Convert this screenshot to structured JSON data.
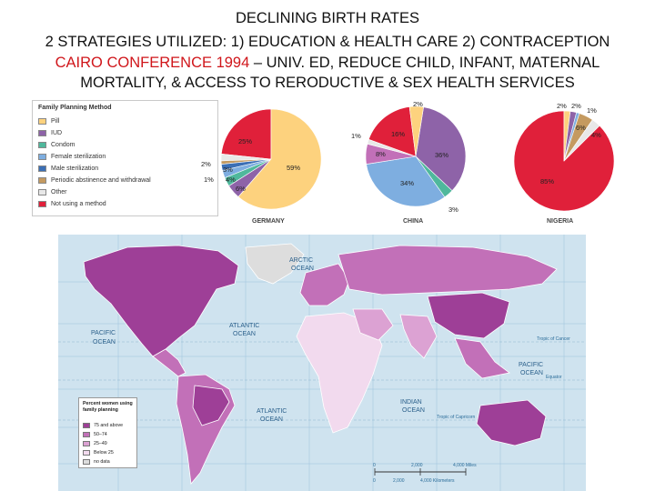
{
  "title": {
    "line1": "DECLINING BIRTH RATES",
    "line2": "2 STRATEGIES UTILIZED: 1) EDUCATION & HEALTH CARE 2) CONTRACEPTION",
    "line3_red": "CAIRO CONFERENCE 1994",
    "line3_rest": " – UNIV. ED, REDUCE CHILD, INFANT, MATERNAL",
    "line4": "MORTALITY, & ACCESS TO RERODUCTIVE & SEX HEALTH SERVICES"
  },
  "legend": {
    "title": "Family Planning Method",
    "items": [
      {
        "label": "Pill",
        "color": "#fdd27e"
      },
      {
        "label": "IUD",
        "color": "#8e63a8"
      },
      {
        "label": "Condom",
        "color": "#4fb89c"
      },
      {
        "label": "Female sterilization",
        "color": "#7eaee0"
      },
      {
        "label": "Male sterilization",
        "color": "#3b6fb5"
      },
      {
        "label": "Periodic abstinence and withdrawal",
        "color": "#c49a60"
      },
      {
        "label": "Other",
        "color": "#e8e8e8"
      },
      {
        "label": "Not using a method",
        "color": "#e0203a"
      }
    ]
  },
  "pies": [
    {
      "country": "GERMANY",
      "labels": [
        "25%",
        "59%",
        "3%",
        "4%",
        "6%",
        "2%",
        "1%"
      ]
    },
    {
      "country": "CHINA",
      "labels": [
        "16%",
        "2%",
        "36%",
        "34%",
        "3%",
        "8%",
        "1%"
      ]
    },
    {
      "country": "NIGERIA",
      "labels": [
        "85%",
        "2%",
        "2%",
        "1%",
        "6%",
        "4%"
      ]
    }
  ],
  "map": {
    "oceans": {
      "arctic": [
        "ARCTIC",
        "OCEAN"
      ],
      "atlantic_n": [
        "ATLANTIC",
        "OCEAN"
      ],
      "pacific_w": [
        "PACIFIC",
        "OCEAN"
      ],
      "atlantic_s": [
        "ATLANTIC",
        "OCEAN"
      ],
      "indian": [
        "INDIAN",
        "OCEAN"
      ],
      "pacific_e": [
        "PACIFIC",
        "OCEAN"
      ]
    },
    "legend": {
      "title": "Percent women using family planning",
      "items": [
        {
          "label": "75 and above",
          "color": "#9e3f97"
        },
        {
          "label": "50–74",
          "color": "#c270b8"
        },
        {
          "label": "25–49",
          "color": "#dca2d3"
        },
        {
          "label": "Below 25",
          "color": "#f2daee"
        },
        {
          "label": "no data",
          "color": "#dddddd"
        }
      ]
    },
    "scale": {
      "miles": [
        "0",
        "2,000",
        "4,000 Miles"
      ],
      "km": [
        "0",
        "2,000",
        "4,000 Kilometers"
      ]
    },
    "lines": {
      "cancer": "Tropic of Cancer",
      "equator": "Equator",
      "capricorn": "Tropic of Capricorn"
    }
  }
}
